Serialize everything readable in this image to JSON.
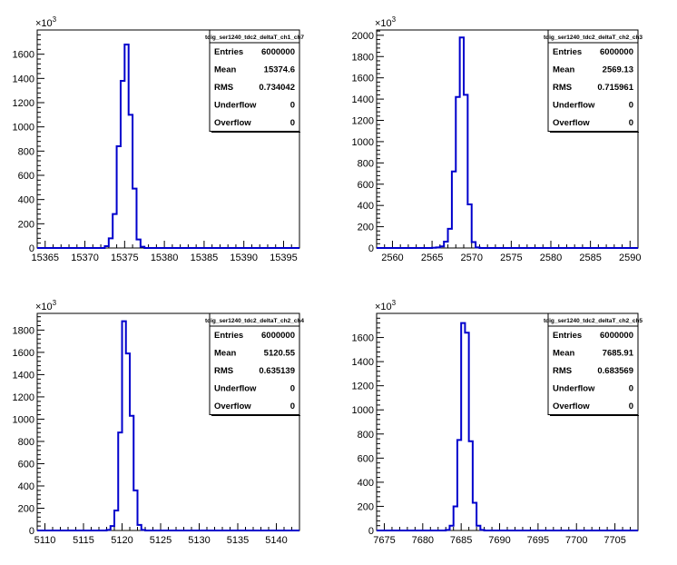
{
  "chart_data": [
    {
      "type": "bar",
      "title": "tdig_ser1240_tdc2_deltaT_ch1_ch7",
      "y_multiplier": "×10",
      "y_exponent": "3",
      "xlim": [
        15364,
        15397
      ],
      "ylim": [
        0,
        1800
      ],
      "x_ticks": [
        15365,
        15370,
        15375,
        15380,
        15385,
        15390,
        15395
      ],
      "y_ticks": [
        0,
        200,
        400,
        600,
        800,
        1000,
        1200,
        1400,
        1600
      ],
      "bin_width": 0.5,
      "bins_x": [
        15372,
        15372.5,
        15373,
        15373.5,
        15374,
        15374.5,
        15375,
        15375.5,
        15376,
        15376.5,
        15377
      ],
      "bins_y": [
        0,
        15,
        80,
        280,
        840,
        1380,
        1680,
        1100,
        490,
        70,
        10
      ],
      "stats": [
        {
          "label": "Entries",
          "value": "6000000"
        },
        {
          "label": "Mean",
          "value": "15374.6"
        },
        {
          "label": "RMS",
          "value": "0.734042"
        },
        {
          "label": "Underflow",
          "value": "0"
        },
        {
          "label": "Overflow",
          "value": "0"
        }
      ]
    },
    {
      "type": "bar",
      "title": "tdig_ser1240_tdc2_deltaT_ch2_ch3",
      "y_multiplier": "×10",
      "y_exponent": "3",
      "xlim": [
        2558,
        2591
      ],
      "ylim": [
        0,
        2050
      ],
      "x_ticks": [
        2560,
        2565,
        2570,
        2575,
        2580,
        2585,
        2590
      ],
      "y_ticks": [
        0,
        200,
        400,
        600,
        800,
        1000,
        1200,
        1400,
        1600,
        1800,
        2000
      ],
      "bin_width": 0.5,
      "bins_x": [
        2565,
        2565.5,
        2566,
        2566.5,
        2567,
        2567.5,
        2568,
        2568.5,
        2569,
        2569.5,
        2570,
        2570.5
      ],
      "bins_y": [
        2,
        5,
        15,
        60,
        180,
        720,
        1420,
        1980,
        1440,
        410,
        55,
        5
      ],
      "stats": [
        {
          "label": "Entries",
          "value": "6000000"
        },
        {
          "label": "Mean",
          "value": "2569.13"
        },
        {
          "label": "RMS",
          "value": "0.715961"
        },
        {
          "label": "Underflow",
          "value": "0"
        },
        {
          "label": "Overflow",
          "value": "0"
        }
      ]
    },
    {
      "type": "bar",
      "title": "tdig_ser1240_tdc2_deltaT_ch2_ch4",
      "y_multiplier": "×10",
      "y_exponent": "3",
      "xlim": [
        5109,
        5143
      ],
      "ylim": [
        0,
        1950
      ],
      "x_ticks": [
        5110,
        5115,
        5120,
        5125,
        5130,
        5135,
        5140
      ],
      "y_ticks": [
        0,
        200,
        400,
        600,
        800,
        1000,
        1200,
        1400,
        1600,
        1800
      ],
      "bin_width": 0.5,
      "bins_x": [
        5117.5,
        5118,
        5118.5,
        5119,
        5119.5,
        5120,
        5120.5,
        5121,
        5121.5,
        5122,
        5122.5
      ],
      "bins_y": [
        0,
        5,
        40,
        180,
        880,
        1880,
        1590,
        1030,
        360,
        50,
        5
      ],
      "stats": [
        {
          "label": "Entries",
          "value": "6000000"
        },
        {
          "label": "Mean",
          "value": "5120.55"
        },
        {
          "label": "RMS",
          "value": "0.635139"
        },
        {
          "label": "Underflow",
          "value": "0"
        },
        {
          "label": "Overflow",
          "value": "0"
        }
      ]
    },
    {
      "type": "bar",
      "title": "tdig_ser1240_tdc2_deltaT_ch2_ch5",
      "y_multiplier": "×10",
      "y_exponent": "3",
      "xlim": [
        7674,
        7708
      ],
      "ylim": [
        0,
        1800
      ],
      "x_ticks": [
        7675,
        7680,
        7685,
        7690,
        7695,
        7700,
        7705
      ],
      "y_ticks": [
        0,
        200,
        400,
        600,
        800,
        1000,
        1200,
        1400,
        1600
      ],
      "bin_width": 0.5,
      "bins_x": [
        7682.5,
        7683,
        7683.5,
        7684,
        7684.5,
        7685,
        7685.5,
        7686,
        7686.5,
        7687,
        7687.5
      ],
      "bins_y": [
        0,
        5,
        40,
        200,
        750,
        1720,
        1640,
        740,
        230,
        40,
        5
      ],
      "stats": [
        {
          "label": "Entries",
          "value": "6000000"
        },
        {
          "label": "Mean",
          "value": "7685.91"
        },
        {
          "label": "RMS",
          "value": "0.683569"
        },
        {
          "label": "Underflow",
          "value": "0"
        },
        {
          "label": "Overflow",
          "value": "0"
        }
      ]
    }
  ],
  "colors": {
    "histogram_line": "#0000cc",
    "axis": "#000000",
    "background": "#ffffff"
  }
}
